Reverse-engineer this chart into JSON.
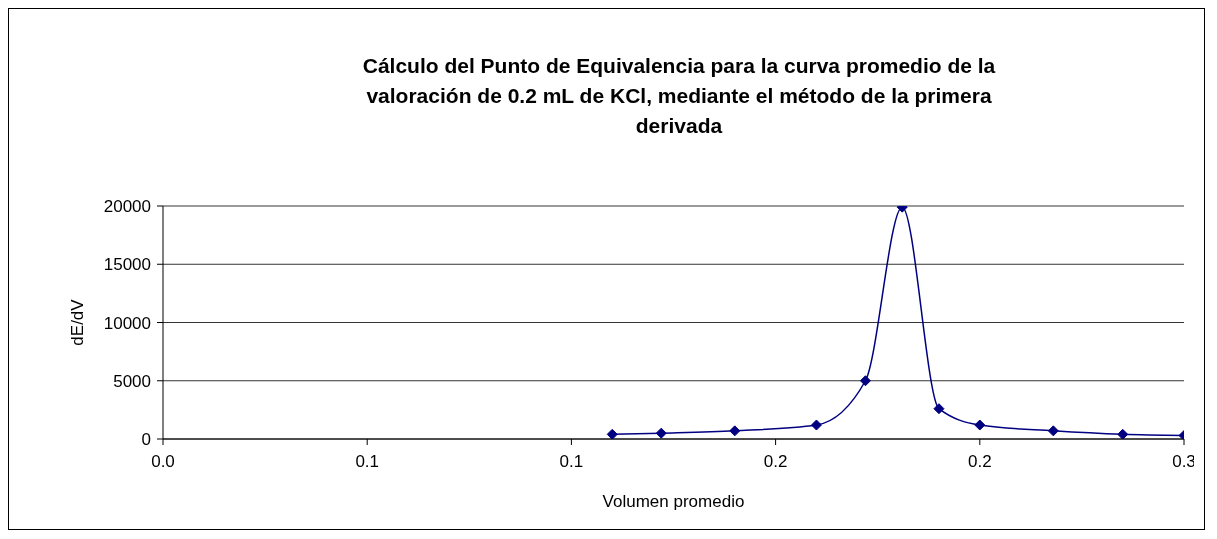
{
  "chart_data": {
    "type": "line",
    "title": "Cálculo del Punto de Equivalencia para la curva promedio de la valoración de 0.2 mL de KCl, mediante el método de la primera derivada",
    "xlabel": "Volumen promedio",
    "ylabel": "dE/dV",
    "x": [
      0.11,
      0.122,
      0.14,
      0.16,
      0.172,
      0.181,
      0.19,
      0.2,
      0.218,
      0.235,
      0.25
    ],
    "series": [
      {
        "color": "#000080",
        "values": [
          400,
          500,
          700,
          1200,
          5000,
          19900,
          2600,
          1200,
          700,
          400,
          300
        ]
      }
    ],
    "xlim": [
      0,
      0.25
    ],
    "xticks": [
      {
        "value": 0,
        "label": "0.0"
      },
      {
        "value": 0.05,
        "label": "0.1"
      },
      {
        "value": 0.1,
        "label": "0.1"
      },
      {
        "value": 0.15,
        "label": "0.2"
      },
      {
        "value": 0.2,
        "label": "0.2"
      },
      {
        "value": 0.25,
        "label": "0.3"
      }
    ],
    "ylim": [
      0,
      20000
    ],
    "yticks": [
      0,
      5000,
      10000,
      15000,
      20000
    ],
    "grid": "y",
    "legend": false,
    "marker": "diamond",
    "line_style": "solid"
  }
}
